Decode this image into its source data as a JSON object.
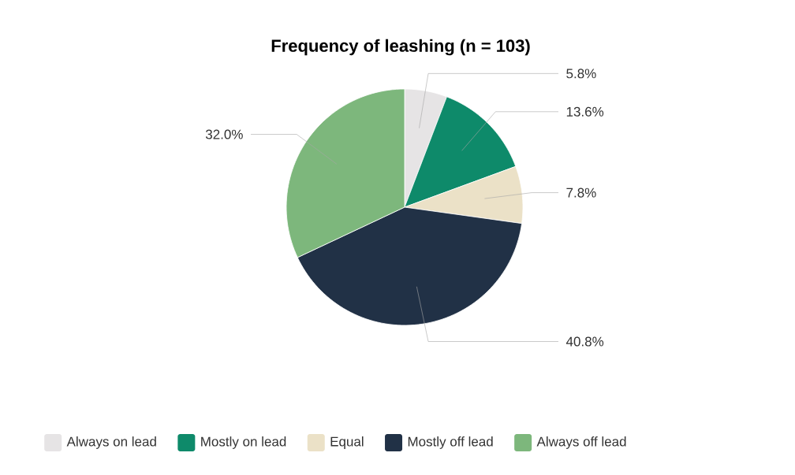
{
  "chart_data": {
    "type": "pie",
    "title": "Frequency of leashing (n = 103)",
    "categories": [
      "Always on lead",
      "Mostly on lead",
      "Equal",
      "Mostly off lead",
      "Always off lead"
    ],
    "values": [
      5.8,
      13.6,
      7.8,
      40.8,
      32.0
    ],
    "value_labels": [
      "5.8%",
      "13.6%",
      "7.8%",
      "40.8%",
      "32.0%"
    ],
    "colors": [
      "#e6e4e5",
      "#0e8a6a",
      "#ebe1c7",
      "#213146",
      "#7db77c"
    ],
    "legend": "bottom"
  }
}
